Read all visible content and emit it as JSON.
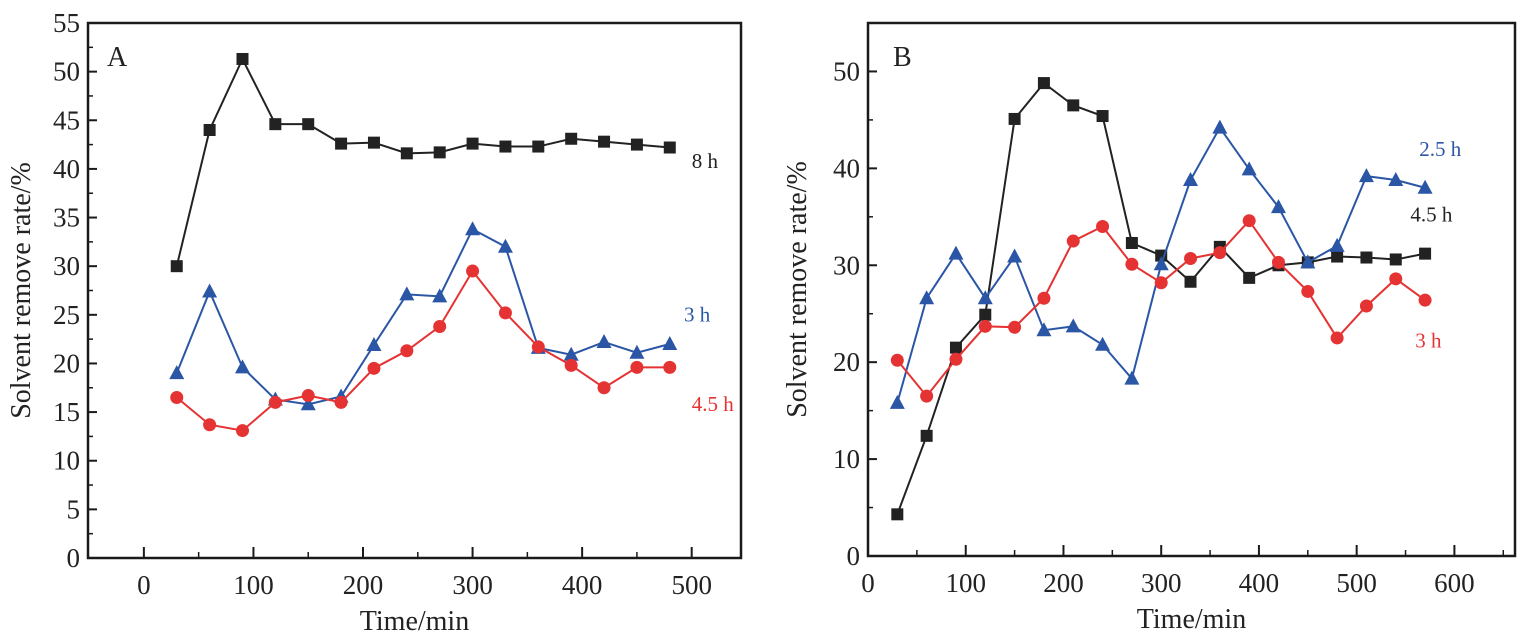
{
  "chart_data": [
    {
      "type": "line",
      "panel_label": "A",
      "title": "",
      "xlabel": "Time/min",
      "ylabel": "Solvent remove rate/%",
      "xlim": [
        -51,
        545
      ],
      "ylim": [
        0,
        55
      ],
      "xticks": [
        0,
        100,
        200,
        300,
        400,
        500
      ],
      "yticks": [
        0,
        5,
        10,
        15,
        20,
        25,
        30,
        35,
        40,
        45,
        50,
        55
      ],
      "grid": false,
      "x": [
        30,
        60,
        90,
        120,
        150,
        180,
        210,
        240,
        270,
        300,
        330,
        360,
        390,
        420,
        450,
        480
      ],
      "series": [
        {
          "name": "8 h",
          "marker": "square",
          "color": "#222222",
          "values": [
            30,
            44,
            51.3,
            44.6,
            44.6,
            42.6,
            42.7,
            41.6,
            41.7,
            42.6,
            42.3,
            42.3,
            43.1,
            42.8,
            42.5,
            42.2
          ],
          "label_pos": [
            500,
            40.1
          ]
        },
        {
          "name": "3 h",
          "marker": "triangle",
          "color": "#2b56a6",
          "values": [
            19,
            27.4,
            19.6,
            16.3,
            15.8,
            16.6,
            21.9,
            27.1,
            26.9,
            33.8,
            32,
            21.6,
            20.9,
            22.2,
            21.1,
            22
          ],
          "label_pos": [
            493,
            24.3
          ]
        },
        {
          "name": "4.5 h",
          "marker": "circle",
          "color": "#e53333",
          "values": [
            16.5,
            13.7,
            13.1,
            16,
            16.7,
            16,
            19.5,
            21.3,
            23.8,
            29.5,
            25.2,
            21.7,
            19.8,
            17.5,
            19.6,
            19.6
          ],
          "label_pos": [
            500,
            15.1
          ]
        }
      ]
    },
    {
      "type": "line",
      "panel_label": "B",
      "title": "",
      "xlabel": "Time/min",
      "ylabel": "Solvent remove rate/%",
      "xlim": [
        0,
        662
      ],
      "ylim": [
        0,
        55
      ],
      "xticks": [
        0,
        100,
        200,
        300,
        400,
        500,
        600
      ],
      "yticks": [
        0,
        10,
        20,
        30,
        40,
        50
      ],
      "grid": false,
      "x": [
        30,
        60,
        90,
        120,
        150,
        180,
        210,
        240,
        270,
        300,
        330,
        360,
        390,
        420,
        450,
        480,
        510,
        540,
        570
      ],
      "series": [
        {
          "name": "4.5 h",
          "marker": "square",
          "color": "#222222",
          "values": [
            4.3,
            12.4,
            21.5,
            24.9,
            45.1,
            48.8,
            46.5,
            45.4,
            32.3,
            31,
            28.3,
            31.9,
            28.7,
            30,
            30.3,
            30.9,
            30.8,
            30.6,
            31.2
          ],
          "label_pos": [
            555,
            34.5
          ]
        },
        {
          "name": "2.5 h",
          "marker": "triangle",
          "color": "#2b56a6",
          "values": [
            15.8,
            26.6,
            31.2,
            26.6,
            30.9,
            23.3,
            23.7,
            21.8,
            18.3,
            30.1,
            38.8,
            44.2,
            39.9,
            36,
            30.3,
            32,
            39.2,
            38.8,
            38
          ],
          "label_pos": [
            564,
            41.3
          ]
        },
        {
          "name": "3 h",
          "marker": "circle",
          "color": "#e53333",
          "values": [
            20.2,
            16.5,
            20.3,
            23.7,
            23.6,
            26.6,
            32.5,
            34,
            30.1,
            28.2,
            30.7,
            31.3,
            34.6,
            30.3,
            27.3,
            22.5,
            25.8,
            28.6,
            26.4
          ],
          "label_pos": [
            560,
            21.5
          ]
        }
      ]
    }
  ]
}
